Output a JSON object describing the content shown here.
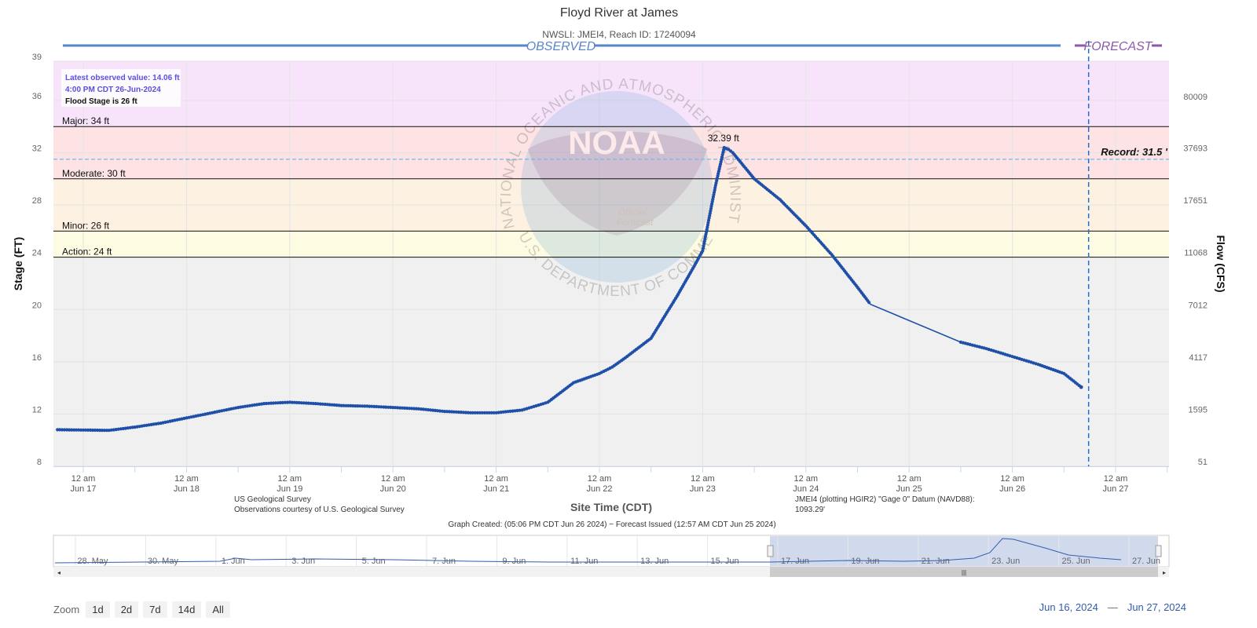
{
  "chart_data": {
    "type": "line",
    "title": "Floyd River at James",
    "subtitle": "NWSLI: JMEI4, Reach ID: 17240094",
    "xlabel": "Site Time (CDT)",
    "ylabel": "Stage (FT)",
    "y2label": "Flow (CFS)",
    "ylim": [
      8,
      39
    ],
    "y_ticks": [
      "39",
      "36",
      "32",
      "28",
      "24",
      "20",
      "16",
      "12",
      "8"
    ],
    "y2_ticks": [
      "80009",
      "37693",
      "17651",
      "11068",
      "7012",
      "4117",
      "1595",
      "51"
    ],
    "x_ticks": [
      {
        "time": "12 am",
        "date": "Jun 17"
      },
      {
        "time": "12 am",
        "date": "Jun 18"
      },
      {
        "time": "12 am",
        "date": "Jun 19"
      },
      {
        "time": "12 am",
        "date": "Jun 20"
      },
      {
        "time": "12 am",
        "date": "Jun 21"
      },
      {
        "time": "12 am",
        "date": "Jun 22"
      },
      {
        "time": "12 am",
        "date": "Jun 23"
      },
      {
        "time": "12 am",
        "date": "Jun 24"
      },
      {
        "time": "12 am",
        "date": "Jun 25"
      },
      {
        "time": "12 am",
        "date": "Jun 26"
      },
      {
        "time": "12 am",
        "date": "Jun 27"
      }
    ],
    "section_labels": {
      "observed": "OBSERVED",
      "forecast": "FORECAST"
    },
    "flood_categories": [
      {
        "label": "Major: 34 ft",
        "value": 34
      },
      {
        "label": "Moderate: 30 ft",
        "value": 30
      },
      {
        "label": "Minor: 26 ft",
        "value": 26
      },
      {
        "label": "Action: 24 ft",
        "value": 24
      }
    ],
    "record": {
      "label": "Record: 31.5 '",
      "value": 31.5
    },
    "peak_label": "32.39 ft",
    "series": [
      {
        "name": "Observed",
        "x": [
          "2024-06-16 18:00",
          "2024-06-17 06:00",
          "2024-06-17 12:00",
          "2024-06-17 18:00",
          "2024-06-18 00:00",
          "2024-06-18 06:00",
          "2024-06-18 12:00",
          "2024-06-18 18:00",
          "2024-06-19 00:00",
          "2024-06-19 06:00",
          "2024-06-19 12:00",
          "2024-06-19 18:00",
          "2024-06-20 00:00",
          "2024-06-20 06:00",
          "2024-06-20 12:00",
          "2024-06-20 18:00",
          "2024-06-21 00:00",
          "2024-06-21 06:00",
          "2024-06-21 12:00",
          "2024-06-21 18:00",
          "2024-06-22 00:00",
          "2024-06-22 03:00",
          "2024-06-22 06:00",
          "2024-06-22 12:00",
          "2024-06-22 18:00",
          "2024-06-22 22:00",
          "2024-06-23 00:00",
          "2024-06-23 03:00",
          "2024-06-23 05:00",
          "2024-06-23 06:00",
          "2024-06-23 07:00",
          "2024-06-23 09:00",
          "2024-06-23 12:00",
          "2024-06-23 18:00",
          "2024-06-24 00:00",
          "2024-06-24 06:00",
          "2024-06-24 12:00",
          "2024-06-24 15:00",
          "2024-06-25 12:00",
          "2024-06-25 18:00",
          "2024-06-26 00:00",
          "2024-06-26 06:00",
          "2024-06-26 12:00",
          "2024-06-26 16:00"
        ],
        "y": [
          10.8,
          10.75,
          11.0,
          11.3,
          11.7,
          12.1,
          12.5,
          12.8,
          12.9,
          12.8,
          12.65,
          12.6,
          12.5,
          12.4,
          12.2,
          12.1,
          12.1,
          12.3,
          12.9,
          14.4,
          15.1,
          15.6,
          16.3,
          17.8,
          21.0,
          23.3,
          24.5,
          29.5,
          32.39,
          32.25,
          32.0,
          31.2,
          30.0,
          28.4,
          26.4,
          24.2,
          21.7,
          20.4,
          17.5,
          17.0,
          16.4,
          15.8,
          15.1,
          14.06
        ]
      }
    ],
    "info_box": {
      "latest": "Latest observed value: 14.06 ft",
      "time": "4:00 PM CDT 26-Jun-2024",
      "flood_stage": "Flood Stage is 26 ft"
    },
    "credits": {
      "usgs": "US Geological Survey",
      "courtesy": "Observations courtesy of U.S. Geological Survey",
      "datum": "JMEI4 (plotting HGIR2) \"Gage 0\" Datum (NAVD88):",
      "datum_value": "1093.29'",
      "created": "Graph Created: (05:06 PM CDT Jun 26 2024) − Forecast Issued (12:57 AM CDT Jun 25 2024)"
    },
    "watermark": {
      "logo": "NOAA",
      "arc_top": "NATIONAL OCEANIC AND ATMOSPHERIC ADMINISTRATION",
      "arc_bottom": "U.S. DEPARTMENT OF COMMERCE",
      "official_1": "Official",
      "official_2": "Forecast"
    },
    "navigator": {
      "labels": [
        "28. May",
        "30. May",
        "1. Jun",
        "3. Jun",
        "5. Jun",
        "7. Jun",
        "9. Jun",
        "11. Jun",
        "13. Jun",
        "15. Jun",
        "17. Jun",
        "19. Jun",
        "21. Jun",
        "23. Jun",
        "25. Jun",
        "27. Jun"
      ]
    },
    "colors": {
      "line": "#1f4fa8",
      "observed": "#5a85c8",
      "forecast": "#8a5aa8",
      "major": "#f7e4fb",
      "moderate": "#fde3e3",
      "minor": "#fdf1e1",
      "action": "#fdfbe1",
      "normal": "#f0f0f0",
      "record": "#74b8e6",
      "forecast_line": "#1f6fd6"
    }
  },
  "zoom": {
    "label": "Zoom",
    "buttons": [
      "1d",
      "2d",
      "7d",
      "14d",
      "All"
    ]
  },
  "range": {
    "from": "Jun 16, 2024",
    "to": "Jun 27, 2024"
  }
}
